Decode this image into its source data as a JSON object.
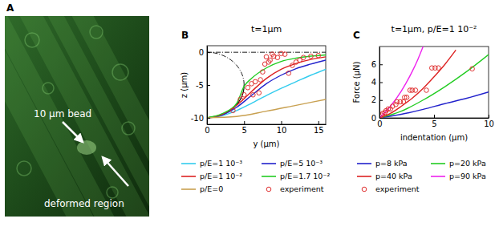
{
  "chart_data": [
    {
      "type": "image",
      "panel": "A",
      "annotations": [
        "10 µm bead",
        "deformed region"
      ]
    },
    {
      "type": "line",
      "panel": "B",
      "title": "t=1µm",
      "x_label": "y (µm)",
      "y_label": "z (µm)",
      "xlim": [
        0,
        16
      ],
      "ylim": [
        -11,
        1
      ],
      "xticks": [
        0,
        5,
        10,
        15
      ],
      "yticks": [
        -10,
        -5,
        0
      ],
      "bead_diameter": 10,
      "legend": "bottom",
      "series": [
        {
          "name": "p/E=1 10⁻³",
          "type": "line",
          "color": "#33ccee",
          "line_style": "solid",
          "x": [
            0,
            2,
            4,
            6,
            8,
            10,
            12,
            14,
            16
          ],
          "values": [
            -10,
            -9.7,
            -8.9,
            -7.8,
            -6.6,
            -5.5,
            -4.5,
            -3.5,
            -2.6
          ]
        },
        {
          "name": "p/E=5 10⁻³",
          "type": "line",
          "color": "#2222cc",
          "line_style": "solid",
          "x": [
            0,
            2,
            4,
            6,
            8,
            10,
            12,
            14,
            16
          ],
          "values": [
            -10,
            -9.6,
            -8.4,
            -6.6,
            -4.8,
            -3.5,
            -2.5,
            -1.8,
            -1.2
          ]
        },
        {
          "name": "p/E=1 10⁻²",
          "type": "line",
          "color": "#dd2222",
          "line_style": "solid",
          "x": [
            0,
            2,
            4,
            6,
            8,
            10,
            12,
            14,
            16
          ],
          "values": [
            -10,
            -9.5,
            -8.1,
            -6.0,
            -4.0,
            -2.6,
            -1.7,
            -1.1,
            -0.7
          ]
        },
        {
          "name": "p/E=1.7 10⁻²",
          "type": "line",
          "color": "#22cc22",
          "line_style": "solid",
          "x": [
            0,
            2,
            4,
            5,
            6,
            8,
            10,
            12,
            14,
            16
          ],
          "values": [
            -10,
            -9.4,
            -7.8,
            -5.2,
            -4.0,
            -2.4,
            -1.4,
            -0.9,
            -0.6,
            -0.4
          ]
        },
        {
          "name": "p/E=0",
          "type": "line",
          "color": "#c8a050",
          "line_style": "solid",
          "x": [
            0,
            4,
            8,
            12,
            16
          ],
          "values": [
            -10,
            -9.8,
            -9.0,
            -8.1,
            -7.2
          ]
        },
        {
          "name": "experiment",
          "type": "scatter",
          "marker": "circle",
          "color": "#e03030",
          "x": [
            3.5,
            4.5,
            5,
            5.5,
            6,
            6.2,
            6.5,
            7,
            7.2,
            7.5,
            7.8,
            8,
            8.3,
            8.5,
            8.8,
            9,
            9.5,
            10,
            10.5,
            11,
            11.5,
            12,
            12.5,
            13,
            14,
            15
          ],
          "values": [
            -8.9,
            -7.2,
            -6.5,
            -5.4,
            -4.8,
            -6.5,
            -4.5,
            -6.2,
            -4.2,
            -3.0,
            -1.8,
            -0.7,
            -1.5,
            -1.2,
            -0.3,
            -0.6,
            -0.8,
            -0.2,
            -0.3,
            -3.2,
            -2.0,
            -1.5,
            -1.2,
            -0.8,
            -0.6,
            -0.5
          ]
        }
      ]
    },
    {
      "type": "line",
      "panel": "C",
      "title": "t=1µm, p/E=1 10⁻²",
      "x_label": "indentation (µm)",
      "y_label": "Force (µN)",
      "xlim": [
        0,
        10
      ],
      "ylim": [
        0,
        8
      ],
      "xticks": [
        0,
        5,
        10
      ],
      "yticks": [
        0,
        2,
        4,
        6
      ],
      "legend": "bottom",
      "series": [
        {
          "name": "p=8 kPa",
          "type": "line",
          "color": "#2222cc",
          "line_style": "solid",
          "x": [
            0,
            2,
            4,
            6,
            8,
            10
          ],
          "values": [
            0,
            0.4,
            0.95,
            1.6,
            2.2,
            2.9
          ]
        },
        {
          "name": "p=20 kPa",
          "type": "line",
          "color": "#22cc22",
          "line_style": "solid",
          "x": [
            0,
            2,
            4,
            6,
            8,
            10
          ],
          "values": [
            0,
            0.75,
            2.0,
            3.5,
            5.2,
            7.1
          ]
        },
        {
          "name": "p=40 kPa",
          "type": "line",
          "color": "#dd2222",
          "line_style": "solid",
          "x": [
            0,
            1,
            2,
            3,
            4,
            5,
            6,
            7
          ],
          "values": [
            0,
            0.5,
            1.3,
            2.2,
            3.3,
            4.6,
            6.0,
            7.6
          ]
        },
        {
          "name": "p=90 kPa",
          "type": "line",
          "color": "#ee22ee",
          "line_style": "solid",
          "x": [
            0,
            1,
            2,
            3,
            3.5,
            4
          ],
          "values": [
            0,
            1.3,
            3.0,
            5.2,
            6.5,
            8.0
          ]
        },
        {
          "name": "experiment",
          "type": "scatter",
          "marker": "circle",
          "color": "#e03030",
          "x": [
            0.2,
            0.3,
            0.5,
            0.6,
            0.8,
            1.0,
            1.2,
            1.5,
            1.6,
            1.9,
            2.2,
            2.3,
            2.5,
            2.8,
            3.0,
            3.3,
            4.3,
            4.8,
            5.1,
            5.4,
            8.5
          ],
          "values": [
            0.3,
            0.5,
            0.6,
            0.8,
            1.0,
            1.0,
            1.3,
            1.5,
            1.8,
            1.8,
            1.8,
            2.3,
            2.3,
            3.1,
            3.1,
            3.1,
            3.1,
            5.6,
            5.6,
            5.6,
            5.5
          ]
        }
      ]
    }
  ]
}
